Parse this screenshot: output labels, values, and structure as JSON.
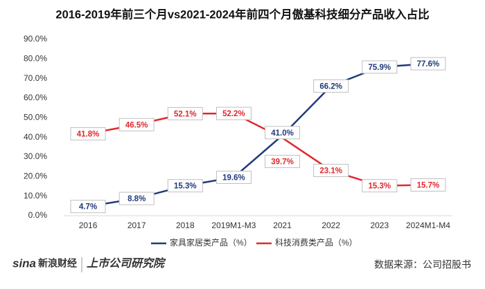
{
  "chart_data": {
    "type": "line",
    "title": "2016-2019年前三个月vs2021-2024年前四个月傲基科技细分产品收入占比",
    "categories": [
      "2016",
      "2017",
      "2018",
      "2019M1-M3",
      "2021",
      "2022",
      "2023",
      "2024M1-M4"
    ],
    "series": [
      {
        "name": "家具家居类产品（%）",
        "color": "#1f3a7a",
        "values": [
          4.7,
          8.8,
          15.3,
          19.6,
          41.0,
          66.2,
          75.9,
          77.6
        ],
        "value_labels": [
          "4.7%",
          "8.8%",
          "15.3%",
          "19.6%",
          "41.0%",
          "66.2%",
          "75.9%",
          "77.6%"
        ]
      },
      {
        "name": "科技消费类产品（%）",
        "color": "#e0282e",
        "values": [
          41.8,
          46.5,
          52.1,
          52.2,
          39.7,
          23.1,
          15.3,
          15.7
        ],
        "value_labels": [
          "41.8%",
          "46.5%",
          "52.1%",
          "52.2%",
          "39.7%",
          "23.1%",
          "15.3%",
          "15.7%"
        ]
      }
    ],
    "ylim": [
      0,
      90
    ],
    "yticks": [
      {
        "value": 0,
        "label": "0.0%"
      },
      {
        "value": 10,
        "label": "10.0%"
      },
      {
        "value": 20,
        "label": "20.0%"
      },
      {
        "value": 30,
        "label": "30.0%"
      },
      {
        "value": 40,
        "label": "40.0%"
      },
      {
        "value": 50,
        "label": "50.0%"
      },
      {
        "value": 60,
        "label": "60.0%"
      },
      {
        "value": 70,
        "label": "70.0%"
      },
      {
        "value": 80,
        "label": "80.0%"
      },
      {
        "value": 90,
        "label": "90.0%"
      }
    ],
    "grid": false,
    "legend": "bottom",
    "source": "数据来源：公司招股书"
  },
  "branding": {
    "sina": "sina",
    "finance": "新浪财经",
    "institute": "上市公司研究院"
  }
}
